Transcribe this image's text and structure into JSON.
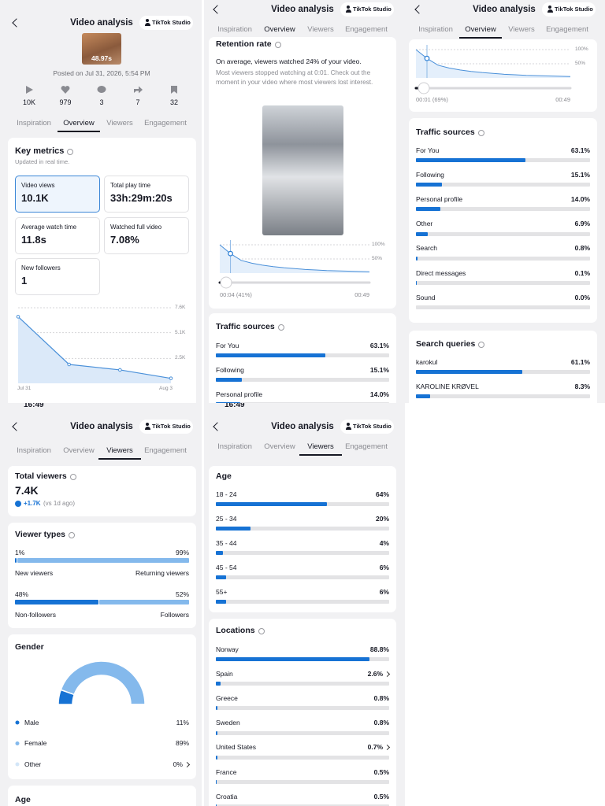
{
  "panels": [
    {
      "header": {
        "title": "Video analysis",
        "studio": "TikTok Studio"
      },
      "thumbnail_duration": "48.97s",
      "posted": "Posted on Jul 31, 2026, 5:54 PM",
      "stats": [
        "10K",
        "979",
        "3",
        "7",
        "32"
      ],
      "tabs": [
        "Inspiration",
        "Overview",
        "Viewers",
        "Engagement"
      ],
      "active_tab": 1,
      "key_metrics": {
        "title": "Key metrics",
        "subtitle": "Updated in real time.",
        "metrics": [
          {
            "label": "Video views",
            "value": "10.1K",
            "selected": true
          },
          {
            "label": "Total play time",
            "value": "33h:29m:20s"
          },
          {
            "label": "Average watch time",
            "value": "11.8s"
          },
          {
            "label": "Watched full video",
            "value": "7.08%"
          },
          {
            "label": "New followers",
            "value": "1"
          }
        ],
        "chart": {
          "x": [
            "Jul 31",
            null,
            null,
            "Aug 3"
          ],
          "values": [
            6700,
            1900,
            1350,
            500
          ],
          "ylim": [
            0,
            7600
          ],
          "yticks": [
            {
              "value": 2500,
              "label": "2.5K"
            },
            {
              "value": 5100,
              "label": "5.1K"
            },
            {
              "value": 7600,
              "label": "7.6K"
            }
          ]
        }
      }
    },
    {
      "header": {
        "title": "Video analysis",
        "studio": "TikTok Studio"
      },
      "tabs": [
        "Inspiration",
        "Overview",
        "Viewers",
        "Engagement"
      ],
      "active_tab": 1,
      "retention": {
        "title": "Retention rate",
        "summary": "On average, viewers watched 24% of your video.",
        "note": "Most viewers stopped watching at 0:01. Check out the moment in your video where most viewers lost interest.",
        "curve": [
          100,
          69,
          45,
          35,
          28,
          23,
          19,
          16,
          13,
          11,
          9,
          8,
          7,
          6,
          5
        ],
        "ylim": [
          0,
          100
        ],
        "yticks": [
          {
            "value": 50,
            "label": "50%"
          },
          {
            "value": 100,
            "label": "100%"
          }
        ],
        "position": "00:04 (41%)",
        "duration": "00:49"
      },
      "traffic_sources": {
        "title": "Traffic sources",
        "items": [
          {
            "name": "For You",
            "value": 63.1,
            "label": "63.1%"
          },
          {
            "name": "Following",
            "value": 15.1,
            "label": "15.1%"
          },
          {
            "name": "Personal profile",
            "value": 14.0,
            "label": "14.0%"
          }
        ]
      }
    },
    {
      "header": {
        "title": "Video analysis",
        "studio": "TikTok Studio"
      },
      "tabs": [
        "Inspiration",
        "Overview",
        "Viewers",
        "Engagement"
      ],
      "active_tab": 1,
      "retention": {
        "curve": [
          100,
          69,
          45,
          35,
          28,
          23,
          19,
          16,
          13,
          11,
          9,
          8,
          7,
          6,
          5
        ],
        "ylim": [
          0,
          100
        ],
        "yticks": [
          {
            "value": 50,
            "label": "50%"
          },
          {
            "value": 100,
            "label": "100%"
          }
        ],
        "position": "00:01 (69%)",
        "duration": "00:49"
      },
      "traffic_sources": {
        "title": "Traffic sources",
        "items": [
          {
            "name": "For You",
            "value": 63.1,
            "label": "63.1%"
          },
          {
            "name": "Following",
            "value": 15.1,
            "label": "15.1%"
          },
          {
            "name": "Personal profile",
            "value": 14.0,
            "label": "14.0%"
          },
          {
            "name": "Other",
            "value": 6.9,
            "label": "6.9%"
          },
          {
            "name": "Search",
            "value": 0.8,
            "label": "0.8%"
          },
          {
            "name": "Direct messages",
            "value": 0.1,
            "label": "0.1%"
          },
          {
            "name": "Sound",
            "value": 0.0,
            "label": "0.0%"
          }
        ]
      },
      "search_queries": {
        "title": "Search queries",
        "items": [
          {
            "name": "karokul",
            "value": 61.1,
            "label": "61.1%"
          },
          {
            "name": "KAROLINE KRØVEL",
            "value": 8.3,
            "label": "8.3%"
          }
        ]
      }
    },
    {
      "status_time": "16:49",
      "header": {
        "title": "Video analysis",
        "studio": "TikTok Studio"
      },
      "tabs": [
        "Inspiration",
        "Overview",
        "Viewers",
        "Engagement"
      ],
      "active_tab": 2,
      "total_viewers": {
        "title": "Total viewers",
        "value": "7.4K",
        "change": "+1.7K",
        "comparison": "(vs 1d ago)"
      },
      "viewer_types": {
        "title": "Viewer types",
        "groups": [
          {
            "left_value": 1,
            "left_label": "1%",
            "right_value": 99,
            "right_label": "99%",
            "left_name": "New viewers",
            "right_name": "Returning viewers"
          },
          {
            "left_value": 48,
            "left_label": "48%",
            "right_value": 52,
            "right_label": "52%",
            "left_name": "Non-followers",
            "right_name": "Followers"
          }
        ]
      },
      "gender": {
        "title": "Gender",
        "items": [
          {
            "name": "Male",
            "value": 11,
            "label": "11%",
            "color": "#1672d4"
          },
          {
            "name": "Female",
            "value": 89,
            "label": "89%",
            "color": "#84b9ec"
          },
          {
            "name": "Other",
            "value": 0,
            "label": "0%",
            "color": "#d3e6f8",
            "link": true
          }
        ]
      },
      "age_title": "Age"
    },
    {
      "status_time": "16:49",
      "header": {
        "title": "Video analysis",
        "studio": "TikTok Studio"
      },
      "tabs": [
        "Inspiration",
        "Overview",
        "Viewers",
        "Engagement"
      ],
      "active_tab": 2,
      "age": {
        "title": "Age",
        "items": [
          {
            "name": "18 - 24",
            "value": 64,
            "label": "64%"
          },
          {
            "name": "25 - 34",
            "value": 20,
            "label": "20%"
          },
          {
            "name": "35 - 44",
            "value": 4,
            "label": "4%"
          },
          {
            "name": "45 - 54",
            "value": 6,
            "label": "6%"
          },
          {
            "name": "55+",
            "value": 6,
            "label": "6%"
          }
        ]
      },
      "locations": {
        "title": "Locations",
        "items": [
          {
            "name": "Norway",
            "value": 88.8,
            "label": "88.8%"
          },
          {
            "name": "Spain",
            "value": 2.6,
            "label": "2.6%",
            "link": true
          },
          {
            "name": "Greece",
            "value": 0.8,
            "label": "0.8%"
          },
          {
            "name": "Sweden",
            "value": 0.8,
            "label": "0.8%"
          },
          {
            "name": "United States",
            "value": 0.7,
            "label": "0.7%",
            "link": true
          },
          {
            "name": "France",
            "value": 0.5,
            "label": "0.5%"
          },
          {
            "name": "Croatia",
            "value": 0.5,
            "label": "0.5%"
          }
        ]
      }
    }
  ]
}
